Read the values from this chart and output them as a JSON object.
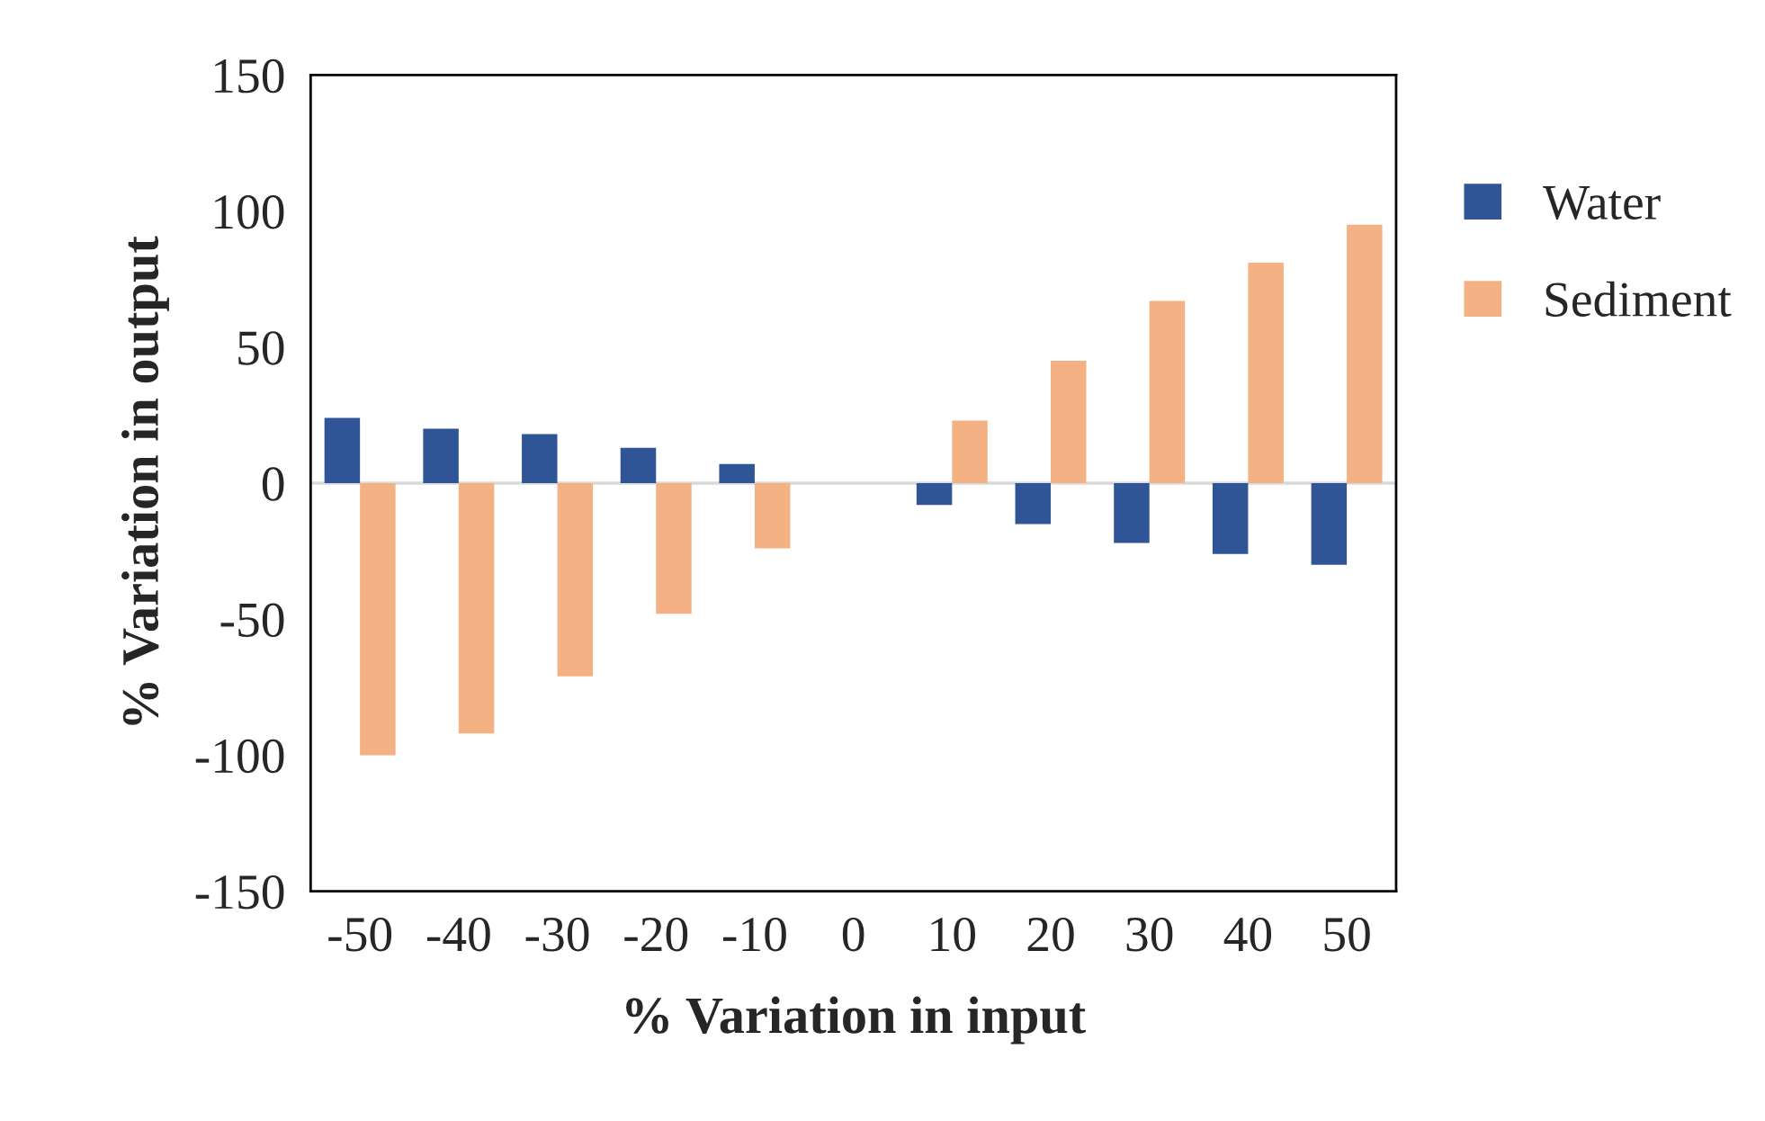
{
  "chart_data": {
    "type": "bar",
    "xlabel": "% Variation in input",
    "ylabel": "% Variation in output",
    "categories": [
      "-50",
      "-40",
      "-30",
      "-20",
      "-10",
      "0",
      "10",
      "20",
      "30",
      "40",
      "50"
    ],
    "series": [
      {
        "name": "Water",
        "color": "#2f5597",
        "values": [
          24,
          20,
          18,
          13,
          7,
          0,
          -8,
          -15,
          -22,
          -26,
          -30
        ]
      },
      {
        "name": "Sediment",
        "color": "#f4b183",
        "values": [
          -100,
          -92,
          -71,
          -48,
          -24,
          0,
          23,
          45,
          67,
          81,
          95
        ]
      }
    ],
    "ylim": [
      -150,
      150
    ],
    "yticks": [
      -150,
      -100,
      -50,
      0,
      50,
      100,
      150
    ],
    "ref_lines": [
      {
        "axis": "y",
        "value": 0,
        "color": "#d9d9d9"
      }
    ],
    "legend": "right"
  }
}
